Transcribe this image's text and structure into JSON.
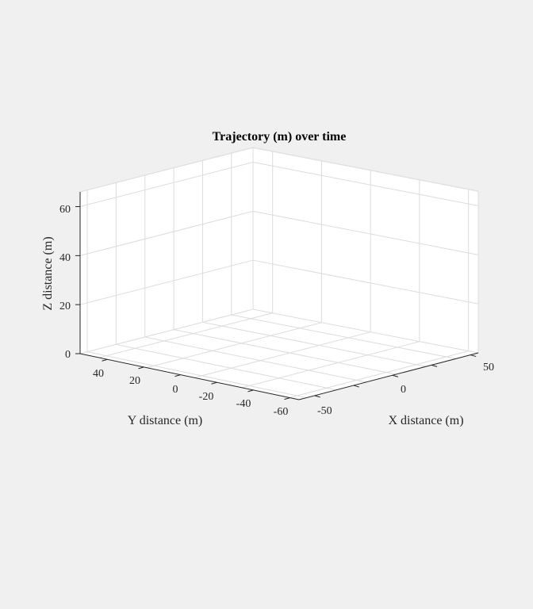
{
  "chart_data": {
    "type": "scatter",
    "title": "Trajectory (m) over time",
    "xlabel": "X distance (m)",
    "ylabel": "Y distance (m)",
    "zlabel": "Z distance (m)",
    "xlim": [
      -60,
      55
    ],
    "ylim": [
      -65,
      55
    ],
    "zlim": [
      0,
      66
    ],
    "x_ticks": [
      "-50",
      "0",
      "50"
    ],
    "y_ticks": [
      "40",
      "20",
      "0",
      "-20",
      "-40",
      "-60"
    ],
    "z_ticks": [
      "0",
      "20",
      "40",
      "60"
    ],
    "grid": true,
    "series": [],
    "background": "#ffffff",
    "figure_background": "#f0f0f0"
  }
}
